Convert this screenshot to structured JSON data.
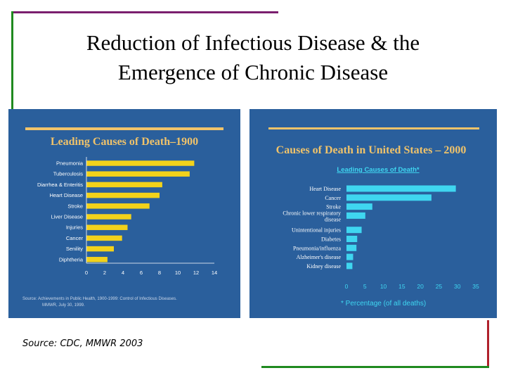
{
  "slide": {
    "title": "Reduction of Infectious Disease & the\nEmergence of Chronic Disease",
    "source": "Source: CDC, MMWR 2003"
  },
  "colors": {
    "frame_purple": "#7a1f6e",
    "frame_green": "#1f8a1f",
    "frame_red": "#b0212c",
    "panel_blue": "#2a5f9c",
    "bar_yellow": "#f2d21b",
    "bar_cyan": "#3fd6f0",
    "accent_rule": "#f0c36a"
  },
  "chart_data": [
    {
      "type": "bar",
      "orientation": "horizontal",
      "title": "Leading Causes of Death–1900",
      "categories": [
        "Pneumonia",
        "Tuberculosis",
        "Diarrhea & Enteritis",
        "Heart Disease",
        "Stroke",
        "Liver Disease",
        "Injuries",
        "Cancer",
        "Senility",
        "Diphtheria"
      ],
      "values": [
        11.8,
        11.3,
        8.3,
        8.0,
        6.9,
        4.9,
        4.5,
        3.9,
        3.0,
        2.3
      ],
      "xticks": [
        "0",
        "2",
        "4",
        "6",
        "8",
        "10",
        "12",
        "14"
      ],
      "xlim": [
        0,
        14
      ],
      "grid": false,
      "footnote": "Source: Achievements in Public Health, 1900-1999: Control of Infectious Diseases. MMWR, July 30, 1999."
    },
    {
      "type": "bar",
      "orientation": "horizontal",
      "title": "Causes of Death in United States – 2000",
      "subtitle": "Leading Causes of Death*",
      "categories": [
        "Heart Disease",
        "Cancer",
        "Stroke",
        "Chronic lower respiratory disease",
        "Unintentional injuries",
        "Diabetes",
        "Pneumonia/influenza",
        "Alzheimer's disease",
        "Kidney disease"
      ],
      "values": [
        29.6,
        23.0,
        7.0,
        5.1,
        4.1,
        2.9,
        2.7,
        1.8,
        1.6
      ],
      "xticks": [
        "0",
        "5",
        "10",
        "15",
        "20",
        "25",
        "30",
        "35"
      ],
      "xlim": [
        0,
        35
      ],
      "grid": false,
      "xlabel": "* Percentage (of all deaths)"
    }
  ]
}
